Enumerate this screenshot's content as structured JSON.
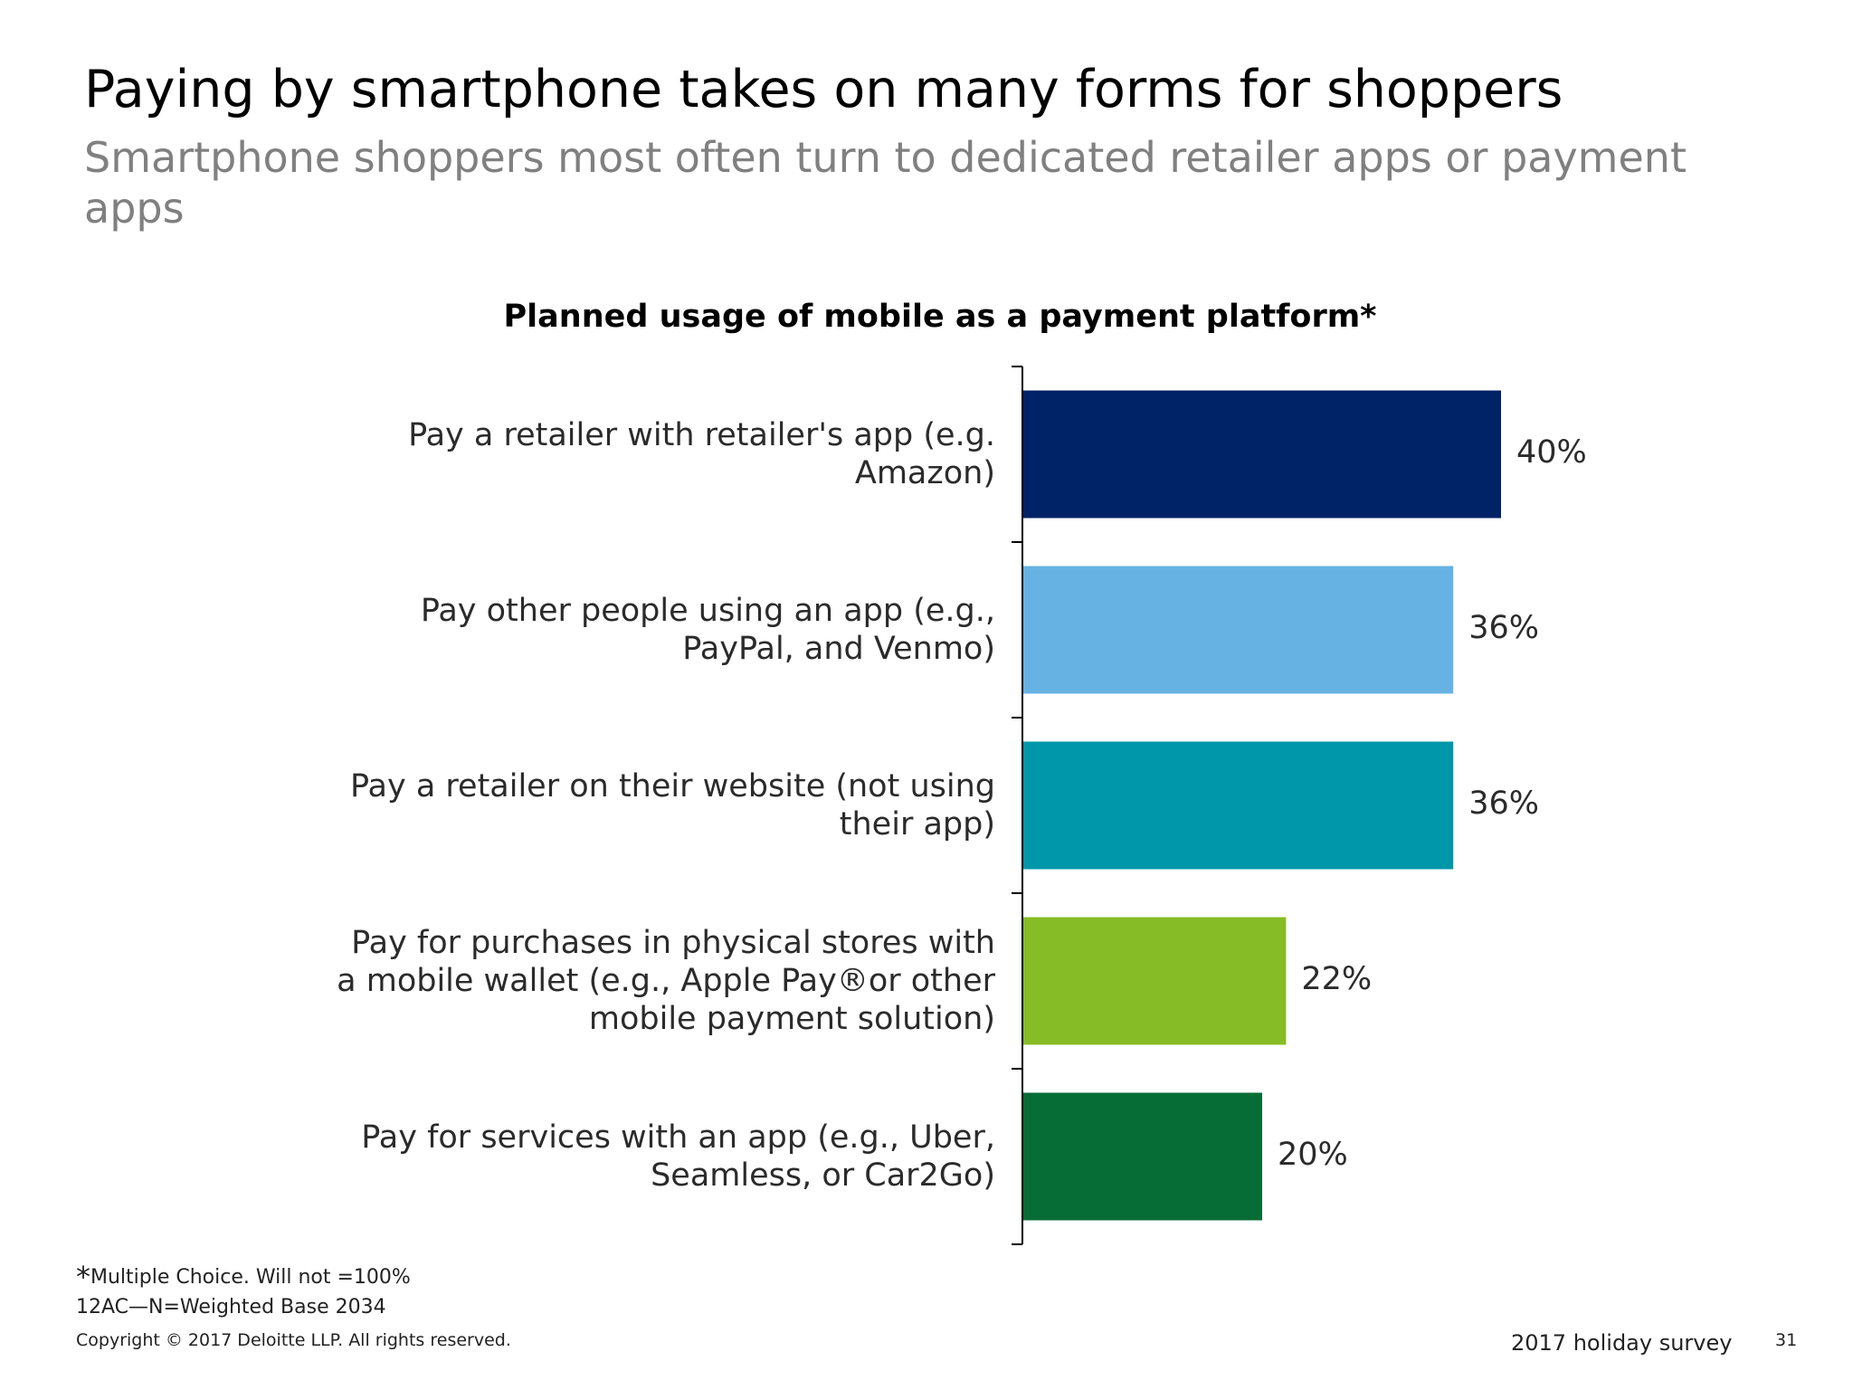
{
  "slide": {
    "title": "Paying by smartphone takes on many forms for shoppers",
    "subtitle": "Smartphone shoppers most often turn to dedicated retailer apps or payment apps"
  },
  "chart_data": {
    "type": "bar",
    "orientation": "horizontal",
    "title": "Planned usage of mobile as a payment platform*",
    "categories": [
      "Pay a retailer with retailer's app (e.g. Amazon)",
      "Pay other people using an app (e.g., PayPal, and Venmo)",
      "Pay a retailer on their website (not using their app)",
      "Pay for purchases in physical stores with a mobile wallet (e.g., Apple Pay®or other mobile payment solution)",
      "Pay for services with an app (e.g., Uber, Seamless, or Car2Go)"
    ],
    "values": [
      40,
      36,
      36,
      22,
      20
    ],
    "value_labels": [
      "40%",
      "36%",
      "36%",
      "22%",
      "20%"
    ],
    "colors": [
      "#002266",
      "#66B3E3",
      "#0097AA",
      "#86BC25",
      "#066D36"
    ],
    "xlim": [
      0,
      100
    ],
    "grid": false,
    "legend": "none"
  },
  "footer": {
    "note_star": "*",
    "note": "Multiple Choice. Will not =100%",
    "base": "12AC—N=Weighted Base 2034",
    "copyright": "Copyright © 2017 Deloitte LLP. All rights reserved.",
    "survey": "2017 holiday survey",
    "page": "31"
  }
}
